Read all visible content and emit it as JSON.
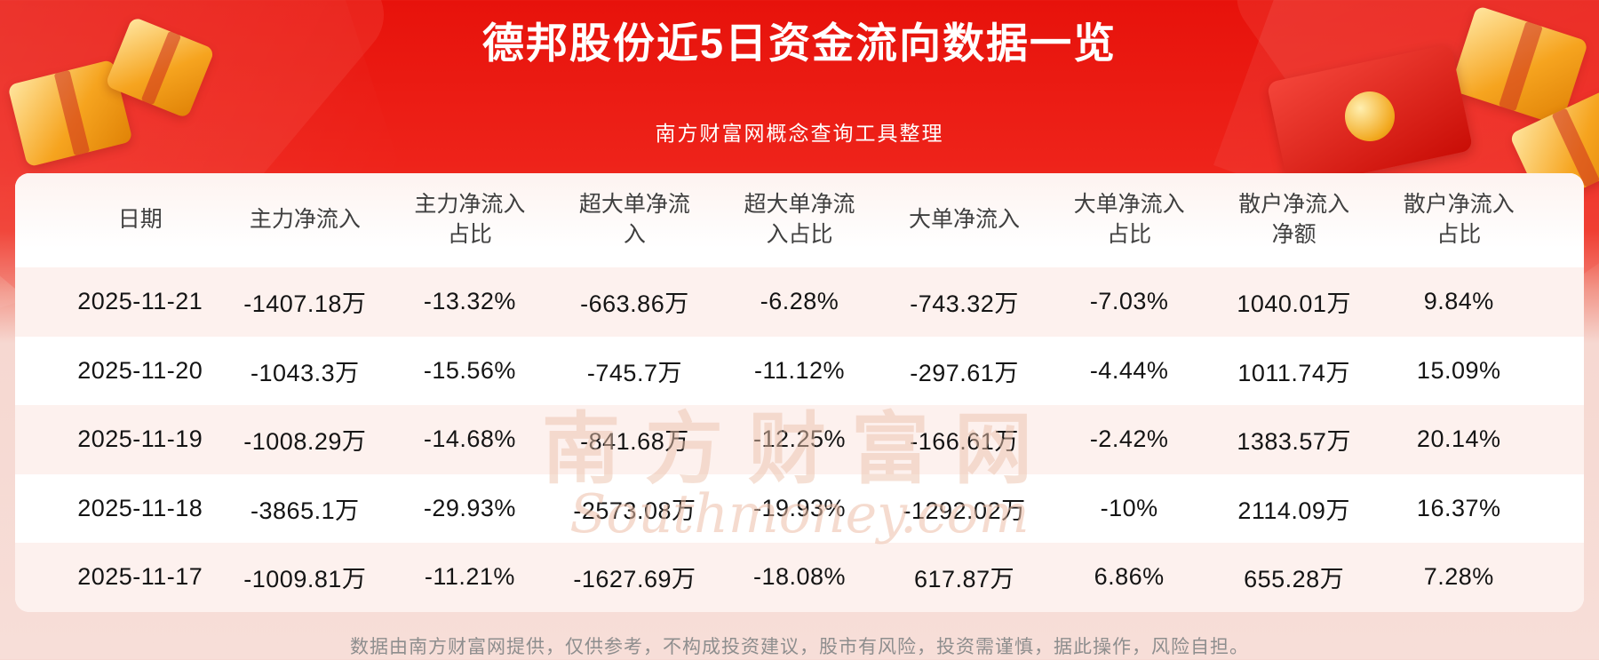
{
  "header": {
    "title": "德邦股份近5日资金流向数据一览",
    "subtitle": "南方财富网概念查询工具整理"
  },
  "chart_data": {
    "type": "table",
    "title": "德邦股份近5日资金流向数据一览",
    "columns": [
      "日期",
      "主力净流入",
      "主力净流入\n占比",
      "超大单净流\n入",
      "超大单净流\n入占比",
      "大单净流入",
      "大单净流入\n占比",
      "散户净流入\n净额",
      "散户净流入\n占比"
    ],
    "rows": [
      [
        "2025-11-21",
        "-1407.18万",
        "-13.32%",
        "-663.86万",
        "-6.28%",
        "-743.32万",
        "-7.03%",
        "1040.01万",
        "9.84%"
      ],
      [
        "2025-11-20",
        "-1043.3万",
        "-15.56%",
        "-745.7万",
        "-11.12%",
        "-297.61万",
        "-4.44%",
        "1011.74万",
        "15.09%"
      ],
      [
        "2025-11-19",
        "-1008.29万",
        "-14.68%",
        "-841.68万",
        "-12.25%",
        "-166.61万",
        "-2.42%",
        "1383.57万",
        "20.14%"
      ],
      [
        "2025-11-18",
        "-3865.1万",
        "-29.93%",
        "-2573.08万",
        "-19.93%",
        "-1292.02万",
        "-10%",
        "2114.09万",
        "16.37%"
      ],
      [
        "2025-11-17",
        "-1009.81万",
        "-11.21%",
        "-1627.69万",
        "-18.08%",
        "617.87万",
        "6.86%",
        "655.28万",
        "7.28%"
      ]
    ]
  },
  "watermark": {
    "cn": "南方财富网",
    "en": "Southmoney.com"
  },
  "footer": {
    "disclaimer": "数据由南方财富网提供，仅供参考，不构成投资建议，股市有风险，投资需谨慎，据此操作，风险自担。"
  },
  "colors": {
    "banner_red": "#e7120b",
    "row_pink": "#fdf1ee",
    "page_pink": "#f7ded8",
    "gold": "#f6a41f",
    "footer_gray": "#8e8e8e"
  }
}
